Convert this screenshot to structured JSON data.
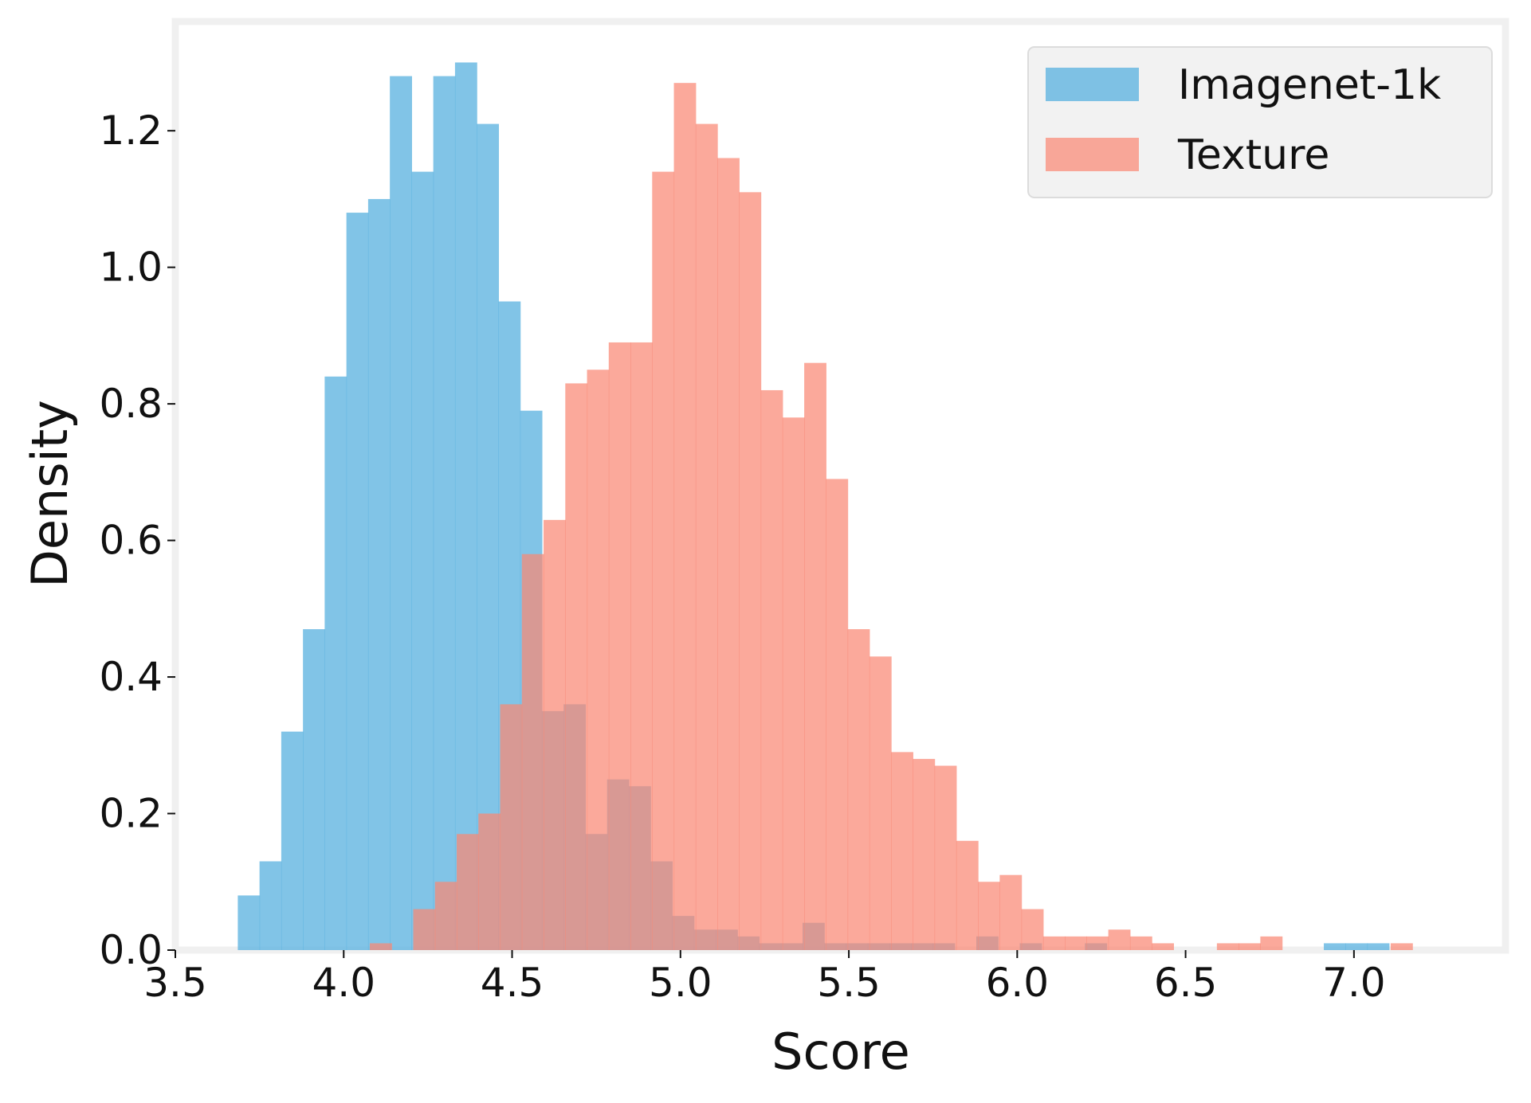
{
  "chart_data": {
    "type": "histogram",
    "title": "",
    "xlabel": "Score",
    "ylabel": "Density",
    "xlim": [
      3.5,
      7.45
    ],
    "ylim": [
      0.0,
      1.36
    ],
    "xticks": [
      {
        "value": 3.5,
        "label": "3.5"
      },
      {
        "value": 4.0,
        "label": "4.0"
      },
      {
        "value": 4.5,
        "label": "4.5"
      },
      {
        "value": 5.0,
        "label": "5.0"
      },
      {
        "value": 5.5,
        "label": "5.5"
      },
      {
        "value": 6.0,
        "label": "6.0"
      },
      {
        "value": 6.5,
        "label": "6.5"
      },
      {
        "value": 7.0,
        "label": "7.0"
      }
    ],
    "yticks": [
      {
        "value": 0.0,
        "label": "0.0"
      },
      {
        "value": 0.2,
        "label": "0.2"
      },
      {
        "value": 0.4,
        "label": "0.4"
      },
      {
        "value": 0.6,
        "label": "0.6"
      },
      {
        "value": 0.8,
        "label": "0.8"
      },
      {
        "value": 1.0,
        "label": "1.0"
      },
      {
        "value": 1.2,
        "label": "1.2"
      }
    ],
    "grid": false,
    "legend_position": "top-right",
    "series": [
      {
        "name": "Imagenet-1k",
        "color": "#5DB3E0",
        "opacity": 0.78,
        "bin_start": 3.6855,
        "bin_width": 0.0645,
        "densities": [
          0.08,
          0.13,
          0.32,
          0.47,
          0.84,
          1.08,
          1.1,
          1.28,
          1.14,
          1.28,
          1.3,
          1.21,
          0.95,
          0.79,
          0.35,
          0.36,
          0.17,
          0.25,
          0.24,
          0.13,
          0.05,
          0.03,
          0.03,
          0.02,
          0.01,
          0.01,
          0.04,
          0.01,
          0.01,
          0.01,
          0.01,
          0.01,
          0.01,
          0.0,
          0.02,
          0.0,
          0.01,
          0.0,
          0.0,
          0.01,
          0.0,
          0.0,
          0.0,
          0.0,
          0.0,
          0.0,
          0.0,
          0.0,
          0.0,
          0.0,
          0.01,
          0.01,
          0.01,
          0.0,
          0.0,
          0.0,
          0.0,
          0.0,
          0.0,
          0.0,
          0.0,
          0.0,
          0.0,
          0.0,
          0.0,
          0.0,
          0.0,
          0.0,
          0.0,
          0.0,
          0.0,
          0.0,
          0.0,
          0.0,
          0.0,
          0.0,
          0.0,
          0.0,
          0.0
        ]
      },
      {
        "name": "Texture",
        "color": "#F98874",
        "opacity": 0.72,
        "bin_start": 4.0775,
        "bin_width": 0.0645,
        "densities": [
          0.01,
          0.0,
          0.06,
          0.1,
          0.17,
          0.2,
          0.36,
          0.58,
          0.63,
          0.83,
          0.85,
          0.89,
          0.89,
          1.14,
          1.27,
          1.21,
          1.16,
          1.11,
          0.82,
          0.78,
          0.86,
          0.69,
          0.47,
          0.43,
          0.29,
          0.28,
          0.27,
          0.16,
          0.1,
          0.11,
          0.06,
          0.02,
          0.02,
          0.02,
          0.03,
          0.02,
          0.01,
          0.0,
          0.0,
          0.01,
          0.01,
          0.02,
          0.0,
          0.0,
          0.0,
          0.0,
          0.0,
          0.01,
          0.0,
          0.0,
          0.0,
          0.0,
          0.0,
          0.0,
          0.01
        ]
      }
    ],
    "overlap_color": "#B98A8A"
  }
}
